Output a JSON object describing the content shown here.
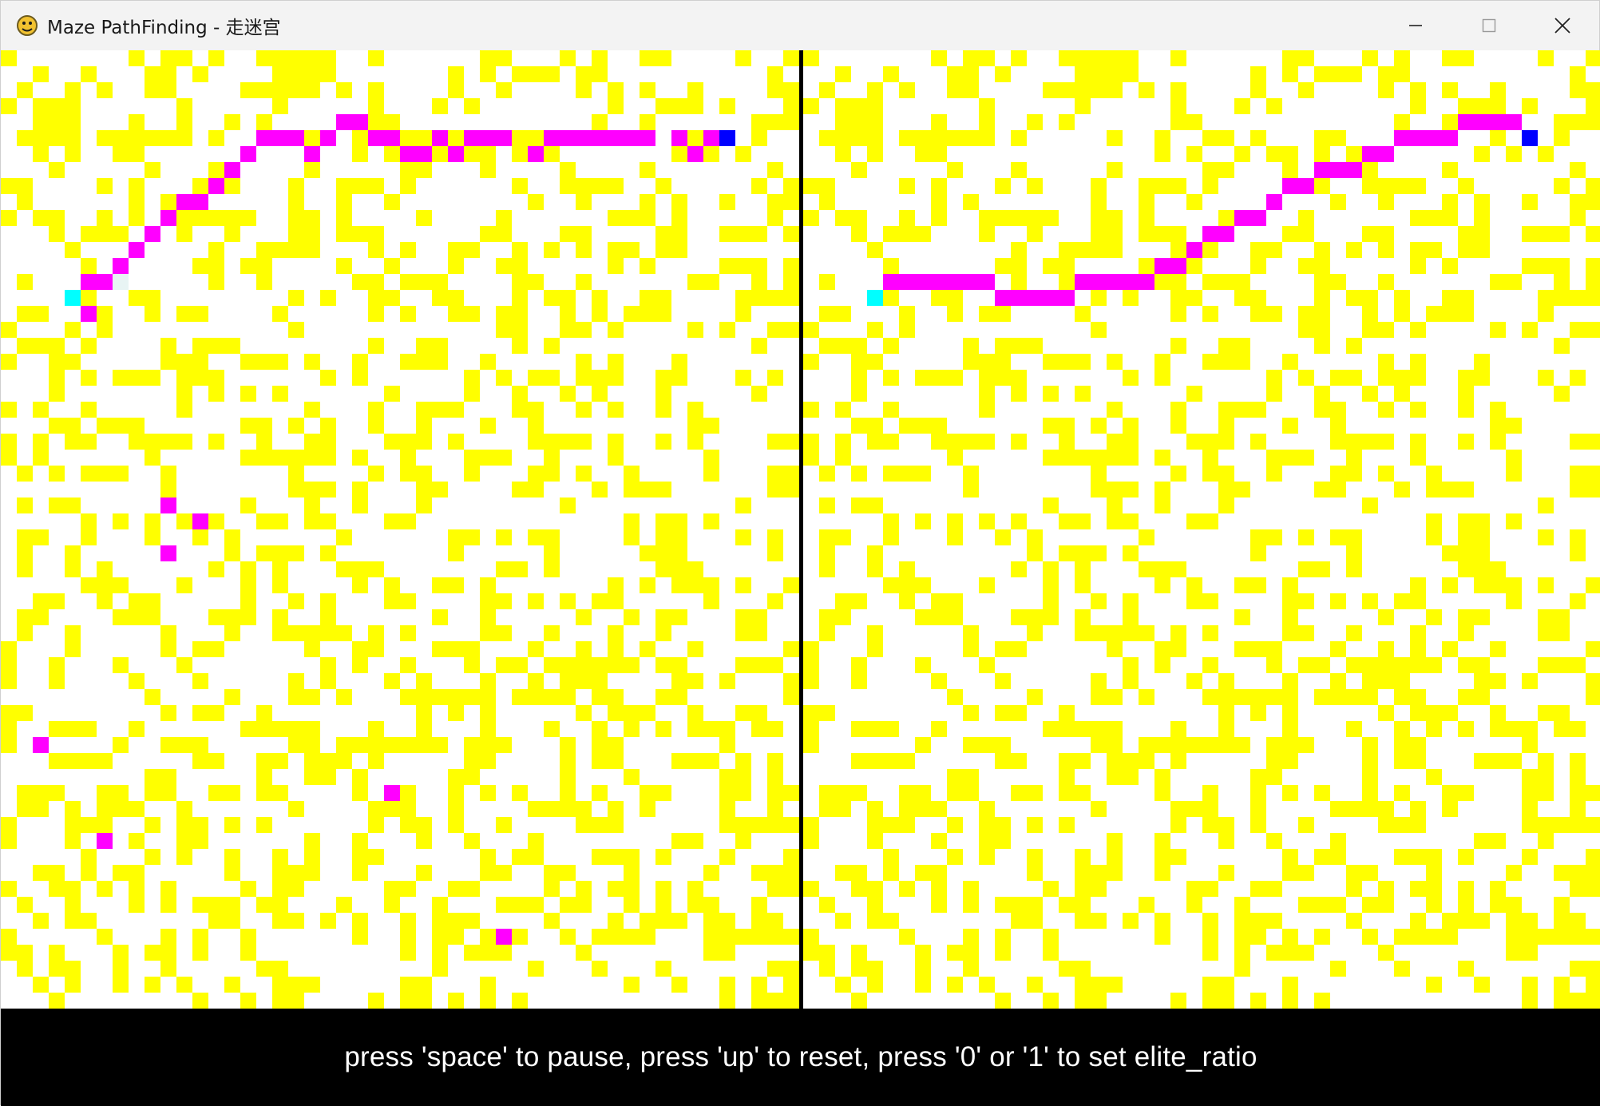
{
  "window": {
    "title": "Maze PathFinding - 走迷宫",
    "app_icon": "pygame-snake-icon",
    "controls": [
      "minimize-icon",
      "maximize-icon",
      "close-icon"
    ]
  },
  "maze": {
    "rows": 60,
    "cols": 50,
    "colors": {
      "wall": "#ffff00",
      "empty": "#ffffff",
      "path": "#ff00ff",
      "start": "#00ffff",
      "goal": "#0000ff",
      "divider": "#000000"
    },
    "start": [
      15,
      4
    ],
    "goal": [
      5,
      45
    ],
    "left_path": [
      [
        4,
        21
      ],
      [
        4,
        22
      ],
      [
        5,
        16
      ],
      [
        5,
        17
      ],
      [
        5,
        18
      ],
      [
        5,
        20
      ],
      [
        5,
        23
      ],
      [
        5,
        24
      ],
      [
        5,
        27
      ],
      [
        5,
        29
      ],
      [
        5,
        30
      ],
      [
        5,
        31
      ],
      [
        5,
        34
      ],
      [
        5,
        35
      ],
      [
        5,
        36
      ],
      [
        5,
        37
      ],
      [
        5,
        38
      ],
      [
        5,
        39
      ],
      [
        5,
        40
      ],
      [
        5,
        42
      ],
      [
        5,
        44
      ],
      [
        6,
        15
      ],
      [
        6,
        19
      ],
      [
        6,
        25
      ],
      [
        6,
        26
      ],
      [
        6,
        28
      ],
      [
        6,
        33
      ],
      [
        6,
        43
      ],
      [
        7,
        14
      ],
      [
        8,
        13
      ],
      [
        9,
        12
      ],
      [
        9,
        11
      ],
      [
        10,
        10
      ],
      [
        11,
        9
      ],
      [
        12,
        8
      ],
      [
        13,
        7
      ],
      [
        14,
        5
      ],
      [
        14,
        6
      ],
      [
        16,
        5
      ],
      [
        28,
        10
      ],
      [
        29,
        12
      ],
      [
        31,
        10
      ],
      [
        43,
        2
      ],
      [
        46,
        24
      ],
      [
        49,
        6
      ],
      [
        55,
        31
      ]
    ],
    "right_path": [
      [
        4,
        41
      ],
      [
        4,
        42
      ],
      [
        4,
        43
      ],
      [
        4,
        44
      ],
      [
        5,
        37
      ],
      [
        5,
        38
      ],
      [
        5,
        39
      ],
      [
        5,
        40
      ],
      [
        6,
        35
      ],
      [
        6,
        36
      ],
      [
        7,
        32
      ],
      [
        7,
        33
      ],
      [
        7,
        34
      ],
      [
        8,
        30
      ],
      [
        8,
        31
      ],
      [
        9,
        29
      ],
      [
        10,
        27
      ],
      [
        10,
        28
      ],
      [
        11,
        25
      ],
      [
        11,
        26
      ],
      [
        12,
        24
      ],
      [
        13,
        22
      ],
      [
        13,
        23
      ],
      [
        14,
        5
      ],
      [
        14,
        6
      ],
      [
        14,
        7
      ],
      [
        14,
        8
      ],
      [
        14,
        9
      ],
      [
        14,
        10
      ],
      [
        14,
        11
      ],
      [
        14,
        17
      ],
      [
        14,
        18
      ],
      [
        14,
        19
      ],
      [
        14,
        20
      ],
      [
        14,
        21
      ],
      [
        15,
        12
      ],
      [
        15,
        13
      ],
      [
        15,
        14
      ],
      [
        15,
        15
      ],
      [
        15,
        16
      ]
    ],
    "left_visited": [
      [
        14,
        7
      ]
    ]
  },
  "status": {
    "text": "press 'space' to pause, press 'up' to reset, press '0' or '1' to set elite_ratio"
  }
}
